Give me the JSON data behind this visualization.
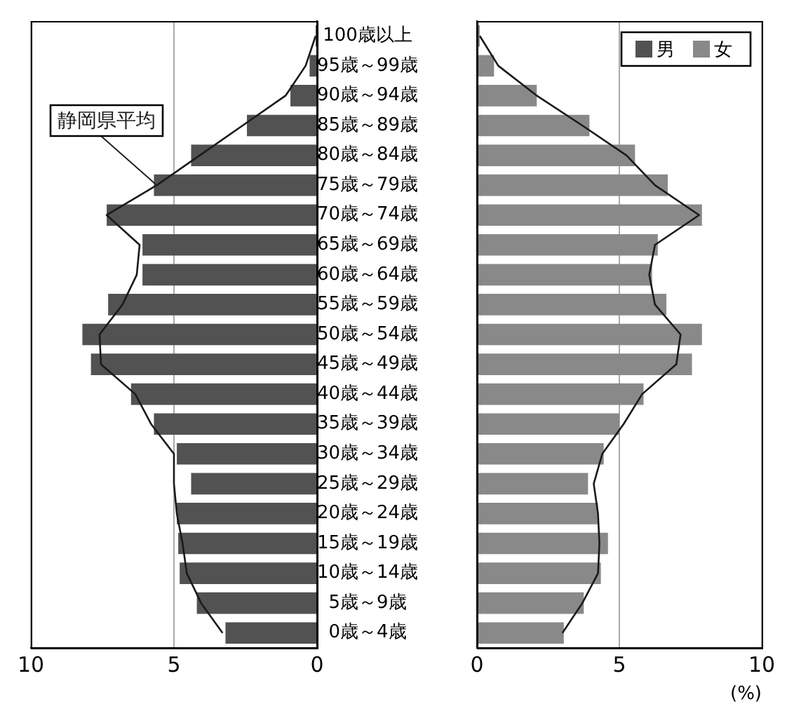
{
  "chart_data": [
    {
      "type": "bar",
      "orientation": "horizontal",
      "categories": [
        "100歳以上",
        "95歳～99歳",
        "90歳～94歳",
        "85歳～89歳",
        "80歳～84歳",
        "75歳～79歳",
        "70歳～74歳",
        "65歳～69歳",
        "60歳～64歳",
        "55歳～59歳",
        "50歳～54歳",
        "45歳～49歳",
        "40歳～44歳",
        "35歳～39歳",
        "30歳～34歳",
        "25歳～29歳",
        "20歳～24歳",
        "15歳～19歳",
        "10歳～14歳",
        "5歳～9歳",
        "0歳～4歳"
      ],
      "xlim": [
        10,
        0
      ],
      "xticks": [
        10,
        5,
        0
      ],
      "grid": "x",
      "marker": "none",
      "legend": "top right",
      "series": [
        {
          "name": "男",
          "color": "#525252",
          "values": [
            0.05,
            0.26,
            0.93,
            2.45,
            4.4,
            5.7,
            7.35,
            6.1,
            6.1,
            7.3,
            8.2,
            7.9,
            6.5,
            5.7,
            4.9,
            4.4,
            4.9,
            4.85,
            4.8,
            4.2,
            3.2
          ]
        },
        {
          "name": "静岡県平均",
          "type": "line",
          "color": "#1a1a1a",
          "values": [
            0.05,
            0.4,
            1.1,
            2.6,
            4.1,
            5.6,
            7.35,
            6.2,
            6.3,
            6.8,
            7.6,
            7.55,
            6.35,
            5.8,
            5.0,
            5.0,
            4.9,
            4.7,
            4.55,
            4.05,
            3.3
          ]
        }
      ]
    },
    {
      "type": "bar",
      "orientation": "horizontal",
      "categories": [
        null,
        null,
        null,
        null,
        null,
        null,
        null,
        null,
        null,
        null,
        null,
        null,
        null,
        null,
        null,
        null,
        null,
        null,
        null,
        null,
        null
      ],
      "xlim": [
        0,
        10
      ],
      "xticks": [
        0,
        5,
        10
      ],
      "xlabel": "(%)",
      "grid": "x",
      "marker": "none",
      "tick_labels": "x",
      "legend": "top right",
      "series": [
        {
          "name": "女",
          "color": "#898989",
          "values": [
            0.1,
            0.6,
            2.1,
            3.95,
            5.55,
            6.7,
            7.9,
            6.35,
            6.15,
            6.65,
            7.9,
            7.55,
            5.85,
            5.0,
            4.45,
            3.9,
            4.25,
            4.6,
            4.35,
            3.75,
            3.05
          ]
        },
        {
          "type": "line",
          "color": "#1a1a1a",
          "values": [
            0.1,
            0.75,
            2.1,
            3.7,
            5.25,
            6.25,
            7.8,
            6.25,
            6.05,
            6.25,
            7.15,
            7.0,
            5.8,
            5.15,
            4.4,
            4.1,
            4.25,
            4.3,
            4.25,
            3.7,
            3.0
          ]
        }
      ]
    }
  ]
}
